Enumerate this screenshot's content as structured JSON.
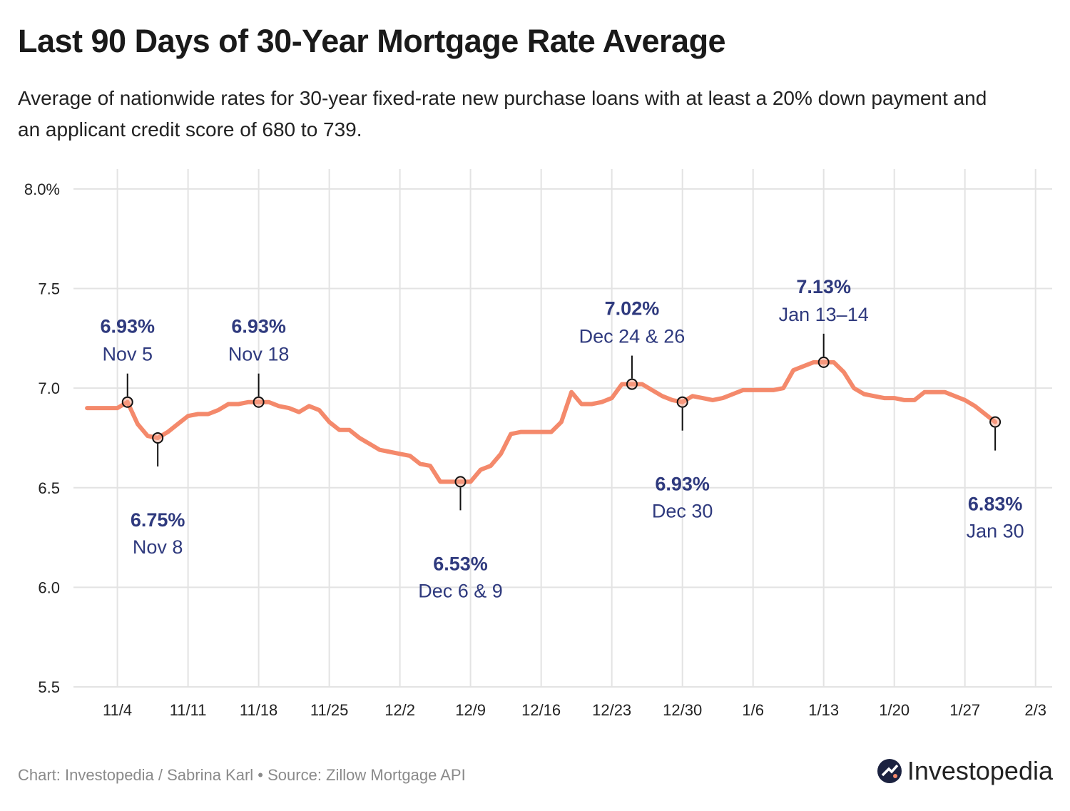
{
  "chart_data": {
    "type": "line",
    "title": "Last 90 Days of 30-Year Mortgage Rate Average",
    "subtitle": "Average of nationwide rates for 30-year fixed-rate new purchase loans with at least a 20% down payment and an applicant credit score of 680 to 739.",
    "source": "Chart: Investopedia / Sabrina Karl • Source: Zillow Mortgage API",
    "brand": "Investopedia",
    "color": "#f4896b",
    "grid": true,
    "x": [
      "11/1",
      "11/2",
      "11/3",
      "11/4",
      "11/5",
      "11/6",
      "11/7",
      "11/8",
      "11/9",
      "11/10",
      "11/11",
      "11/12",
      "11/13",
      "11/14",
      "11/15",
      "11/16",
      "11/17",
      "11/18",
      "11/19",
      "11/20",
      "11/21",
      "11/22",
      "11/23",
      "11/24",
      "11/25",
      "11/26",
      "11/27",
      "11/28",
      "11/29",
      "11/30",
      "12/1",
      "12/2",
      "12/3",
      "12/4",
      "12/5",
      "12/6",
      "12/7",
      "12/8",
      "12/9",
      "12/10",
      "12/11",
      "12/12",
      "12/13",
      "12/14",
      "12/15",
      "12/16",
      "12/17",
      "12/18",
      "12/19",
      "12/20",
      "12/21",
      "12/22",
      "12/23",
      "12/24",
      "12/25",
      "12/26",
      "12/27",
      "12/28",
      "12/29",
      "12/30",
      "12/31",
      "1/1",
      "1/2",
      "1/3",
      "1/4",
      "1/5",
      "1/6",
      "1/7",
      "1/8",
      "1/9",
      "1/10",
      "1/11",
      "1/12",
      "1/13",
      "1/14",
      "1/15",
      "1/16",
      "1/17",
      "1/18",
      "1/19",
      "1/20",
      "1/21",
      "1/22",
      "1/23",
      "1/24",
      "1/25",
      "1/26",
      "1/27",
      "1/28",
      "1/29",
      "1/30"
    ],
    "values": [
      6.9,
      6.9,
      6.9,
      6.9,
      6.93,
      6.82,
      6.76,
      6.75,
      6.78,
      6.82,
      6.86,
      6.87,
      6.87,
      6.89,
      6.92,
      6.92,
      6.93,
      6.93,
      6.93,
      6.91,
      6.9,
      6.88,
      6.91,
      6.89,
      6.83,
      6.79,
      6.79,
      6.75,
      6.72,
      6.69,
      6.68,
      6.67,
      6.66,
      6.62,
      6.61,
      6.53,
      6.53,
      6.53,
      6.53,
      6.59,
      6.61,
      6.67,
      6.77,
      6.78,
      6.78,
      6.78,
      6.78,
      6.83,
      6.98,
      6.92,
      6.92,
      6.93,
      6.95,
      7.02,
      7.02,
      7.02,
      6.99,
      6.96,
      6.94,
      6.93,
      6.96,
      6.95,
      6.94,
      6.95,
      6.97,
      6.99,
      6.99,
      6.99,
      6.99,
      7.0,
      7.09,
      7.11,
      7.13,
      7.13,
      7.13,
      7.08,
      7.0,
      6.97,
      6.96,
      6.95,
      6.95,
      6.94,
      6.94,
      6.98,
      6.98,
      6.98,
      6.96,
      6.94,
      6.91,
      6.87,
      6.83
    ],
    "xlim": [
      "10/31",
      "2/5"
    ],
    "xticks": [
      "11/4",
      "11/11",
      "11/18",
      "11/25",
      "12/2",
      "12/9",
      "12/16",
      "12/23",
      "12/30",
      "1/6",
      "1/13",
      "1/20",
      "1/27",
      "2/3"
    ],
    "ylim": [
      5.5,
      8.1
    ],
    "yticks": [
      5.5,
      {
        "value": 6,
        "label": "6.0"
      },
      6.5,
      {
        "value": 7,
        "label": "7.0"
      },
      7.5,
      {
        "value": 8,
        "label": "8.0%"
      }
    ],
    "annotations": [
      {
        "x": "11/5",
        "value": 6.93,
        "value_label": "6.93%",
        "label": "Nov 5",
        "position": "above"
      },
      {
        "x": "11/8",
        "value": 6.75,
        "value_label": "6.75%",
        "label": "Nov 8",
        "position": "below"
      },
      {
        "x": "11/18",
        "value": 6.93,
        "value_label": "6.93%",
        "label": "Nov 18",
        "position": "above"
      },
      {
        "x": "12/8",
        "value": 6.53,
        "value_label": "6.53%",
        "label": "Dec 6 & 9",
        "position": "below"
      },
      {
        "x": "12/25",
        "value": 7.02,
        "value_label": "7.02%",
        "label": "Dec 24 & 26",
        "position": "above"
      },
      {
        "x": "12/30",
        "value": 6.93,
        "value_label": "6.93%",
        "label": "Dec 30",
        "position": "below"
      },
      {
        "x": "1/13",
        "value": 7.13,
        "value_label": "7.13%",
        "label": "Jan 13–14",
        "position": "above"
      },
      {
        "x": "1/30",
        "value": 6.83,
        "value_label": "6.83%",
        "label": "Jan 30",
        "position": "below"
      }
    ]
  }
}
